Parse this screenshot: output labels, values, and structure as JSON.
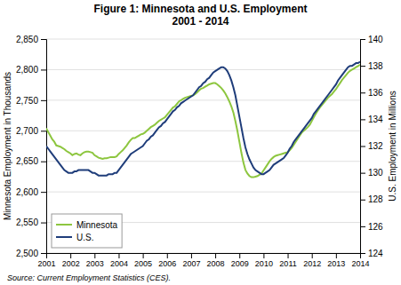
{
  "chart_data": {
    "type": "line",
    "title": "Figure 1:  Minnesota and U.S. Employment\n2001 - 2014",
    "ylabel": "Minnesota Employment in Thousands",
    "y2label": "U.S. Employment in Millions",
    "annotations": [
      "Source: Current Employment Statistics (CES)."
    ],
    "xlim": [
      2001,
      2014
    ],
    "xticks": [
      2001,
      2002,
      2003,
      2004,
      2005,
      2006,
      2007,
      2008,
      2009,
      2010,
      2011,
      2012,
      2013,
      2014
    ],
    "ylim": [
      2500,
      2850
    ],
    "yticks": [
      {
        "value": 2500,
        "label": "2,500"
      },
      {
        "value": 2550,
        "label": "2,550"
      },
      {
        "value": 2600,
        "label": "2,600"
      },
      {
        "value": 2650,
        "label": "2,650"
      },
      {
        "value": 2700,
        "label": "2,700"
      },
      {
        "value": 2750,
        "label": "2,750"
      },
      {
        "value": 2800,
        "label": "2,800"
      },
      {
        "value": 2850,
        "label": "2,850"
      }
    ],
    "y2lim": [
      124,
      140
    ],
    "y2ticks": [
      124,
      126,
      128,
      130,
      132,
      134,
      136,
      138,
      140
    ],
    "grid": true,
    "legend": "lower left",
    "x": [
      2001.0,
      2001.083,
      2001.167,
      2001.25,
      2001.333,
      2001.417,
      2001.5,
      2001.583,
      2001.667,
      2001.75,
      2001.833,
      2001.917,
      2002.0,
      2002.083,
      2002.167,
      2002.25,
      2002.333,
      2002.417,
      2002.5,
      2002.583,
      2002.667,
      2002.75,
      2002.833,
      2002.917,
      2003.0,
      2003.083,
      2003.167,
      2003.25,
      2003.333,
      2003.417,
      2003.5,
      2003.583,
      2003.667,
      2003.75,
      2003.833,
      2003.917,
      2004.0,
      2004.083,
      2004.167,
      2004.25,
      2004.333,
      2004.417,
      2004.5,
      2004.583,
      2004.667,
      2004.75,
      2004.833,
      2004.917,
      2005.0,
      2005.083,
      2005.167,
      2005.25,
      2005.333,
      2005.417,
      2005.5,
      2005.583,
      2005.667,
      2005.75,
      2005.833,
      2005.917,
      2006.0,
      2006.083,
      2006.167,
      2006.25,
      2006.333,
      2006.417,
      2006.5,
      2006.583,
      2006.667,
      2006.75,
      2006.833,
      2006.917,
      2007.0,
      2007.083,
      2007.167,
      2007.25,
      2007.333,
      2007.417,
      2007.5,
      2007.583,
      2007.667,
      2007.75,
      2007.833,
      2007.917,
      2008.0,
      2008.083,
      2008.167,
      2008.25,
      2008.333,
      2008.417,
      2008.5,
      2008.583,
      2008.667,
      2008.75,
      2008.833,
      2008.917,
      2009.0,
      2009.083,
      2009.167,
      2009.25,
      2009.333,
      2009.417,
      2009.5,
      2009.583,
      2009.667,
      2009.75,
      2009.833,
      2009.917,
      2010.0,
      2010.083,
      2010.167,
      2010.25,
      2010.333,
      2010.417,
      2010.5,
      2010.583,
      2010.667,
      2010.75,
      2010.833,
      2010.917,
      2011.0,
      2011.083,
      2011.167,
      2011.25,
      2011.333,
      2011.417,
      2011.5,
      2011.583,
      2011.667,
      2011.75,
      2011.833,
      2011.917,
      2012.0,
      2012.083,
      2012.167,
      2012.25,
      2012.333,
      2012.417,
      2012.5,
      2012.583,
      2012.667,
      2012.75,
      2012.833,
      2012.917,
      2013.0,
      2013.083,
      2013.167,
      2013.25,
      2013.333,
      2013.417,
      2013.5,
      2013.583,
      2013.667,
      2013.75,
      2013.833,
      2013.917,
      2014.0
    ],
    "series": [
      {
        "name": "Minnesota",
        "color": "#8dc63f",
        "values": [
          2704,
          2698,
          2692,
          2686,
          2682,
          2676,
          2675,
          2674,
          2672,
          2670,
          2667,
          2665,
          2663,
          2660,
          2662,
          2663,
          2661,
          2660,
          2663,
          2665,
          2666,
          2666,
          2665,
          2664,
          2660,
          2658,
          2656,
          2655,
          2654,
          2655,
          2655,
          2656,
          2657,
          2657,
          2657,
          2658,
          2662,
          2665,
          2668,
          2672,
          2676,
          2681,
          2685,
          2688,
          2688,
          2690,
          2692,
          2694,
          2695,
          2697,
          2700,
          2703,
          2706,
          2708,
          2710,
          2713,
          2716,
          2718,
          2720,
          2722,
          2726,
          2730,
          2734,
          2738,
          2740,
          2744,
          2748,
          2750,
          2752,
          2754,
          2755,
          2756,
          2757,
          2758,
          2760,
          2763,
          2766,
          2769,
          2770,
          2772,
          2774,
          2776,
          2777,
          2778,
          2778,
          2776,
          2773,
          2770,
          2766,
          2761,
          2755,
          2748,
          2740,
          2730,
          2716,
          2700,
          2682,
          2664,
          2648,
          2636,
          2630,
          2626,
          2624,
          2624,
          2625,
          2626,
          2628,
          2630,
          2635,
          2640,
          2645,
          2650,
          2654,
          2657,
          2659,
          2660,
          2661,
          2662,
          2663,
          2664,
          2665,
          2668,
          2672,
          2677,
          2682,
          2687,
          2692,
          2697,
          2700,
          2703,
          2706,
          2710,
          2716,
          2722,
          2728,
          2733,
          2738,
          2742,
          2746,
          2750,
          2754,
          2757,
          2760,
          2764,
          2768,
          2773,
          2778,
          2783,
          2787,
          2791,
          2795,
          2798,
          2800,
          2802,
          2804,
          2806,
          2808
        ]
      },
      {
        "name": "U.S.",
        "color": "#1f3d7a",
        "axis": "y2",
        "values": [
          132.0,
          131.8,
          131.6,
          131.4,
          131.2,
          131.0,
          130.8,
          130.6,
          130.4,
          130.2,
          130.1,
          130.0,
          130.0,
          130.0,
          130.1,
          130.1,
          130.2,
          130.2,
          130.2,
          130.2,
          130.2,
          130.2,
          130.1,
          130.0,
          130.0,
          129.9,
          129.8,
          129.8,
          129.8,
          129.8,
          129.8,
          129.9,
          129.9,
          129.9,
          130.0,
          130.0,
          130.2,
          130.4,
          130.6,
          130.8,
          131.0,
          131.2,
          131.4,
          131.5,
          131.6,
          131.7,
          131.8,
          131.9,
          132.0,
          132.2,
          132.4,
          132.5,
          132.7,
          132.8,
          133.0,
          133.2,
          133.4,
          133.5,
          133.7,
          133.8,
          134.0,
          134.2,
          134.4,
          134.6,
          134.7,
          134.9,
          135.0,
          135.2,
          135.3,
          135.4,
          135.5,
          135.6,
          135.7,
          135.8,
          136.0,
          136.2,
          136.4,
          136.5,
          136.7,
          136.8,
          137.0,
          137.1,
          137.3,
          137.5,
          137.6,
          137.7,
          137.8,
          137.9,
          137.9,
          137.8,
          137.6,
          137.3,
          136.9,
          136.4,
          135.8,
          135.0,
          134.2,
          133.4,
          132.6,
          131.9,
          131.4,
          131.0,
          130.7,
          130.4,
          130.2,
          130.1,
          130.0,
          129.9,
          129.9,
          130.0,
          130.1,
          130.2,
          130.4,
          130.6,
          130.7,
          130.8,
          130.9,
          131.0,
          131.1,
          131.3,
          131.5,
          131.8,
          132.0,
          132.3,
          132.5,
          132.7,
          132.9,
          133.1,
          133.3,
          133.5,
          133.7,
          133.9,
          134.1,
          134.4,
          134.6,
          134.8,
          135.0,
          135.2,
          135.4,
          135.6,
          135.8,
          136.0,
          136.2,
          136.4,
          136.6,
          136.9,
          137.1,
          137.3,
          137.5,
          137.7,
          137.9,
          138.0,
          138.0,
          138.1,
          138.2,
          138.2,
          138.3
        ]
      }
    ]
  }
}
